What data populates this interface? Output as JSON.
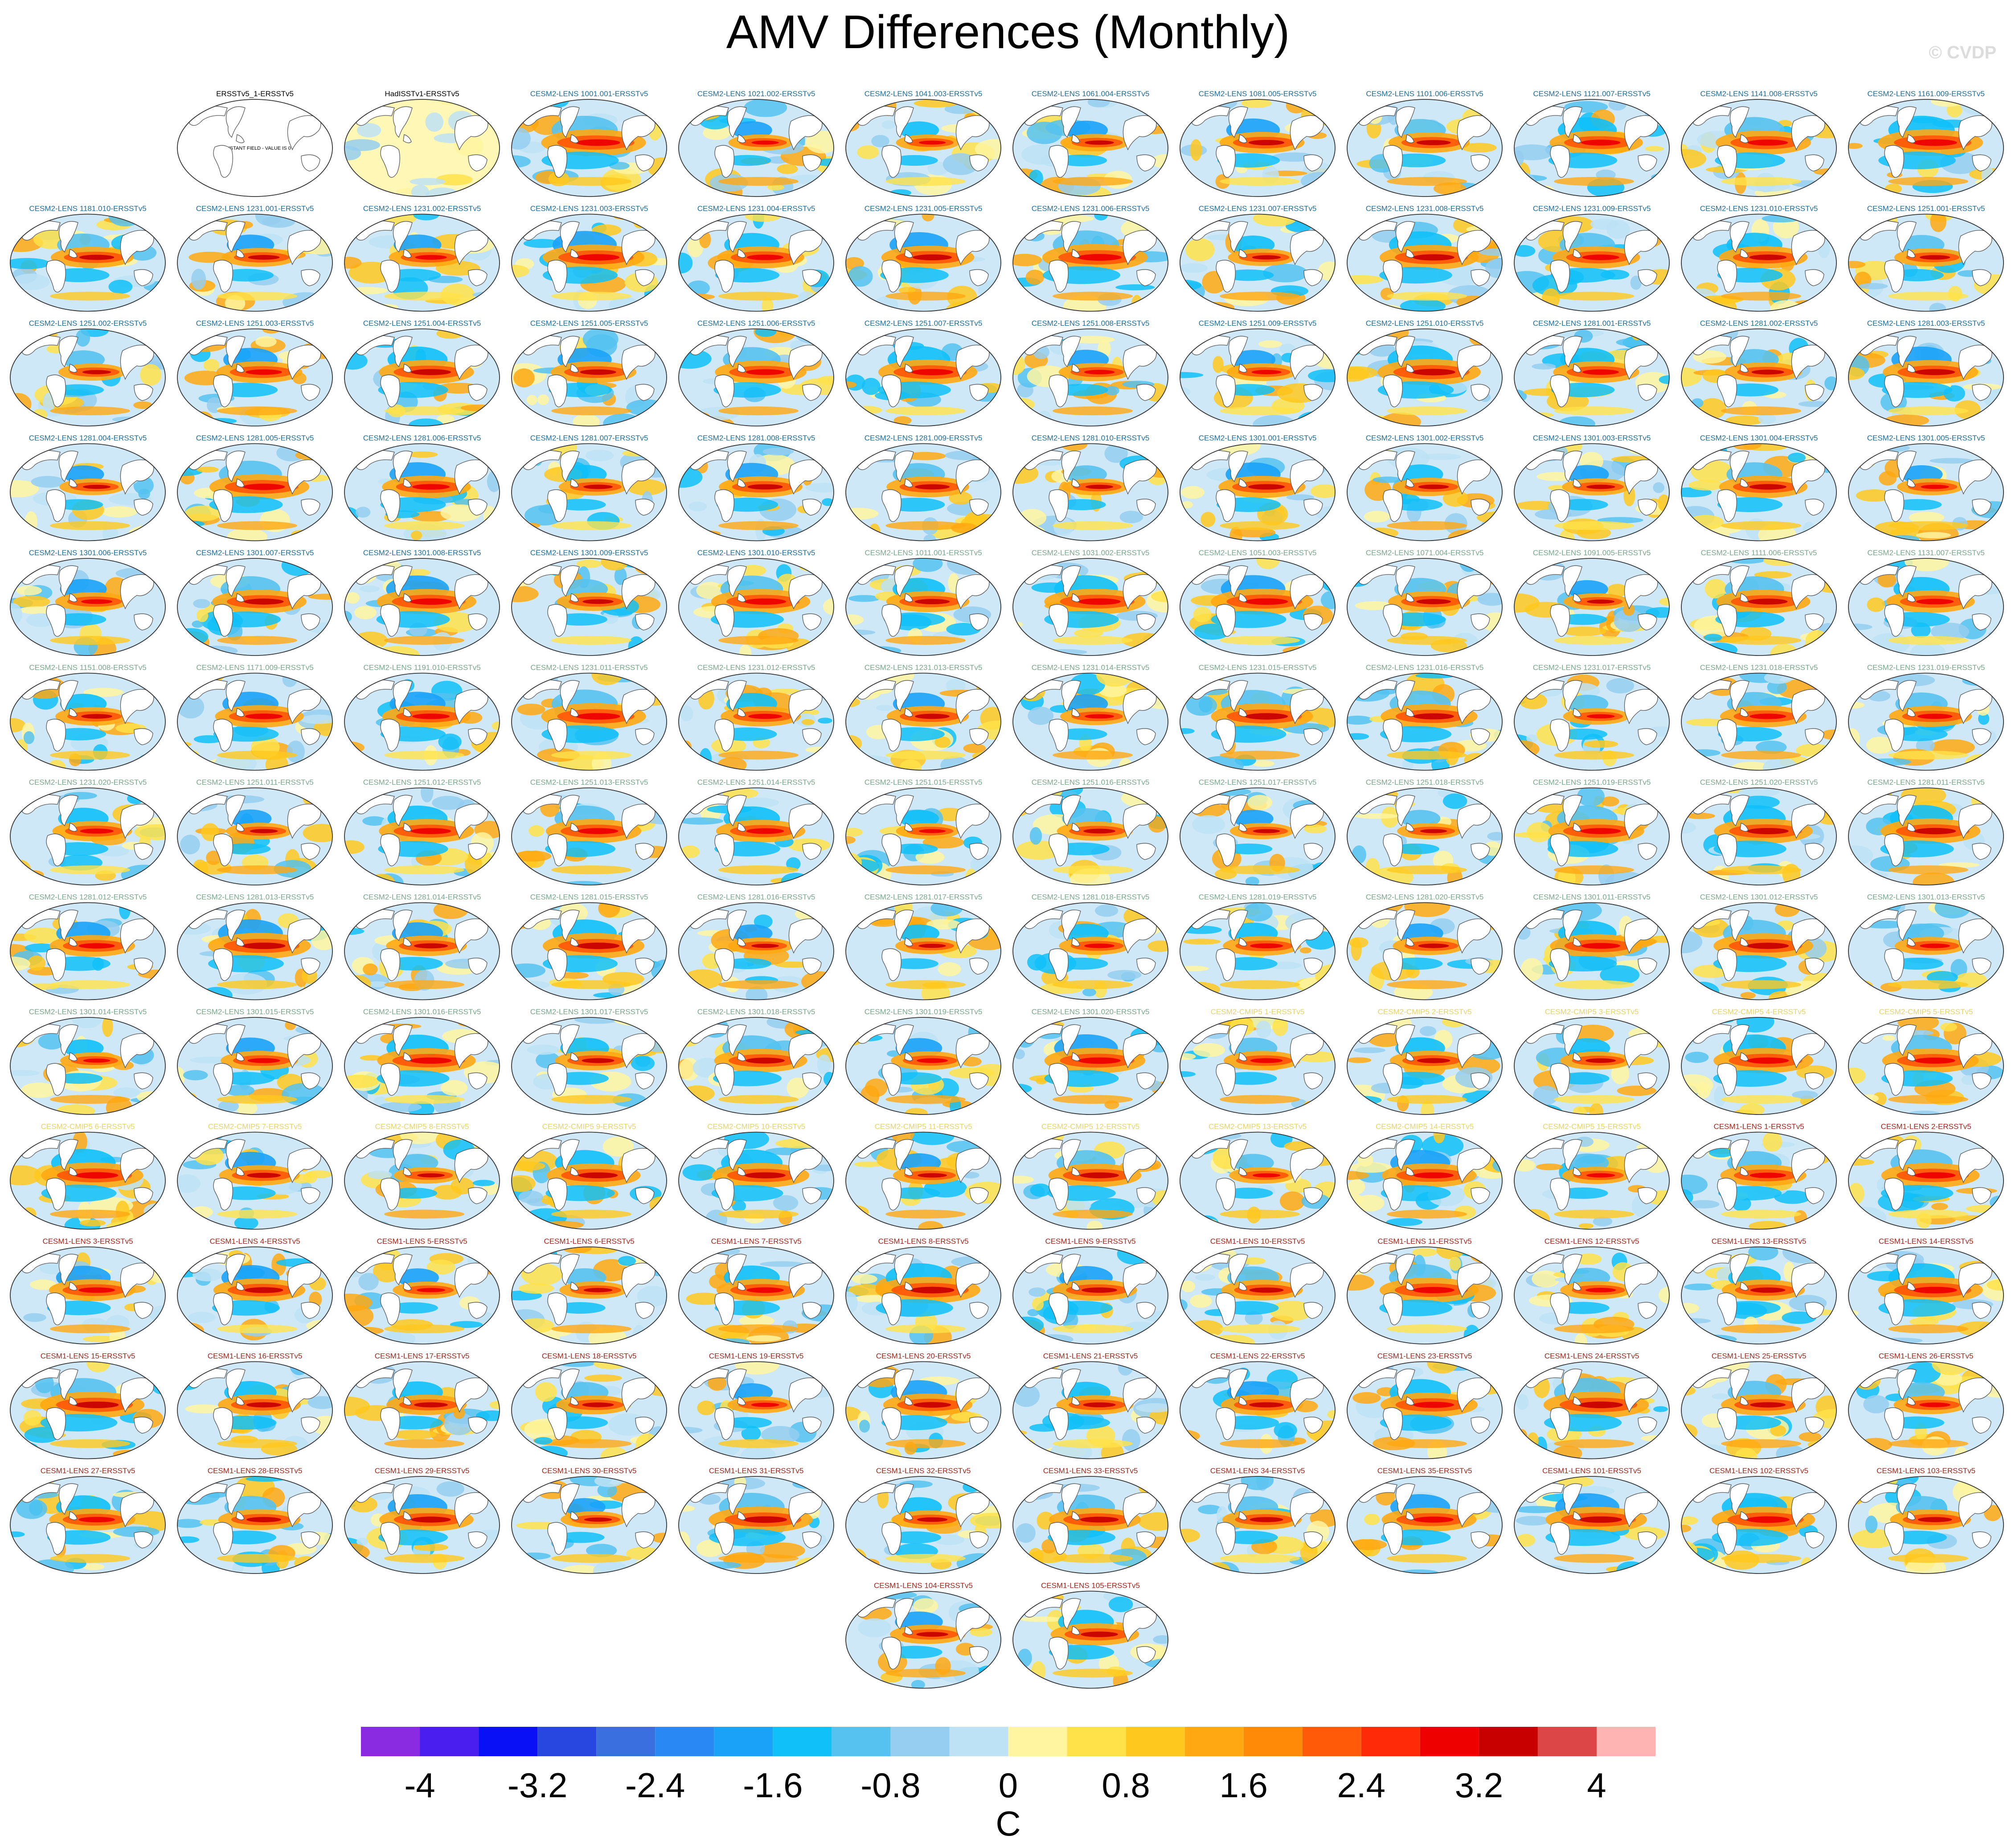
{
  "title": "AMV Differences (Monthly)",
  "watermark": "© CVDP",
  "panel_title_colors": {
    "ERSST": "#000000",
    "CESM2-LENS": "#1f6f9a",
    "CESM2-LENS-alt": "#7aa88f",
    "CESM2-CMIP5": "#e6d36a",
    "CESM1-LENS": "#a0281e"
  },
  "panels": [
    {
      "title": "ERSSTv5_1-ERSSTv5",
      "group": "ERSST",
      "note": "CONSTANT FIELD - VALUE IS 0"
    },
    {
      "title": "HadISSTv1-ERSSTv5",
      "group": "ERSST"
    },
    {
      "title": "CESM2-LENS 1001.001-ERSSTv5",
      "group": "CESM2-LENS"
    },
    {
      "title": "CESM2-LENS 1021.002-ERSSTv5",
      "group": "CESM2-LENS"
    },
    {
      "title": "CESM2-LENS 1041.003-ERSSTv5",
      "group": "CESM2-LENS"
    },
    {
      "title": "CESM2-LENS 1061.004-ERSSTv5",
      "group": "CESM2-LENS"
    },
    {
      "title": "CESM2-LENS 1081.005-ERSSTv5",
      "group": "CESM2-LENS"
    },
    {
      "title": "CESM2-LENS 1101.006-ERSSTv5",
      "group": "CESM2-LENS"
    },
    {
      "title": "CESM2-LENS 1121.007-ERSSTv5",
      "group": "CESM2-LENS"
    },
    {
      "title": "CESM2-LENS 1141.008-ERSSTv5",
      "group": "CESM2-LENS"
    },
    {
      "title": "CESM2-LENS 1161.009-ERSSTv5",
      "group": "CESM2-LENS"
    },
    {
      "title": "CESM2-LENS 1181.010-ERSSTv5",
      "group": "CESM2-LENS"
    },
    {
      "title": "CESM2-LENS 1231.001-ERSSTv5",
      "group": "CESM2-LENS"
    },
    {
      "title": "CESM2-LENS 1231.002-ERSSTv5",
      "group": "CESM2-LENS"
    },
    {
      "title": "CESM2-LENS 1231.003-ERSSTv5",
      "group": "CESM2-LENS"
    },
    {
      "title": "CESM2-LENS 1231.004-ERSSTv5",
      "group": "CESM2-LENS"
    },
    {
      "title": "CESM2-LENS 1231.005-ERSSTv5",
      "group": "CESM2-LENS"
    },
    {
      "title": "CESM2-LENS 1231.006-ERSSTv5",
      "group": "CESM2-LENS"
    },
    {
      "title": "CESM2-LENS 1231.007-ERSSTv5",
      "group": "CESM2-LENS"
    },
    {
      "title": "CESM2-LENS 1231.008-ERSSTv5",
      "group": "CESM2-LENS"
    },
    {
      "title": "CESM2-LENS 1231.009-ERSSTv5",
      "group": "CESM2-LENS"
    },
    {
      "title": "CESM2-LENS 1231.010-ERSSTv5",
      "group": "CESM2-LENS"
    },
    {
      "title": "CESM2-LENS 1251.001-ERSSTv5",
      "group": "CESM2-LENS"
    },
    {
      "title": "CESM2-LENS 1251.002-ERSSTv5",
      "group": "CESM2-LENS"
    },
    {
      "title": "CESM2-LENS 1251.003-ERSSTv5",
      "group": "CESM2-LENS"
    },
    {
      "title": "CESM2-LENS 1251.004-ERSSTv5",
      "group": "CESM2-LENS"
    },
    {
      "title": "CESM2-LENS 1251.005-ERSSTv5",
      "group": "CESM2-LENS"
    },
    {
      "title": "CESM2-LENS 1251.006-ERSSTv5",
      "group": "CESM2-LENS"
    },
    {
      "title": "CESM2-LENS 1251.007-ERSSTv5",
      "group": "CESM2-LENS"
    },
    {
      "title": "CESM2-LENS 1251.008-ERSSTv5",
      "group": "CESM2-LENS"
    },
    {
      "title": "CESM2-LENS 1251.009-ERSSTv5",
      "group": "CESM2-LENS"
    },
    {
      "title": "CESM2-LENS 1251.010-ERSSTv5",
      "group": "CESM2-LENS"
    },
    {
      "title": "CESM2-LENS 1281.001-ERSSTv5",
      "group": "CESM2-LENS"
    },
    {
      "title": "CESM2-LENS 1281.002-ERSSTv5",
      "group": "CESM2-LENS"
    },
    {
      "title": "CESM2-LENS 1281.003-ERSSTv5",
      "group": "CESM2-LENS"
    },
    {
      "title": "CESM2-LENS 1281.004-ERSSTv5",
      "group": "CESM2-LENS"
    },
    {
      "title": "CESM2-LENS 1281.005-ERSSTv5",
      "group": "CESM2-LENS"
    },
    {
      "title": "CESM2-LENS 1281.006-ERSSTv5",
      "group": "CESM2-LENS"
    },
    {
      "title": "CESM2-LENS 1281.007-ERSSTv5",
      "group": "CESM2-LENS"
    },
    {
      "title": "CESM2-LENS 1281.008-ERSSTv5",
      "group": "CESM2-LENS"
    },
    {
      "title": "CESM2-LENS 1281.009-ERSSTv5",
      "group": "CESM2-LENS"
    },
    {
      "title": "CESM2-LENS 1281.010-ERSSTv5",
      "group": "CESM2-LENS"
    },
    {
      "title": "CESM2-LENS 1301.001-ERSSTv5",
      "group": "CESM2-LENS"
    },
    {
      "title": "CESM2-LENS 1301.002-ERSSTv5",
      "group": "CESM2-LENS"
    },
    {
      "title": "CESM2-LENS 1301.003-ERSSTv5",
      "group": "CESM2-LENS"
    },
    {
      "title": "CESM2-LENS 1301.004-ERSSTv5",
      "group": "CESM2-LENS"
    },
    {
      "title": "CESM2-LENS 1301.005-ERSSTv5",
      "group": "CESM2-LENS"
    },
    {
      "title": "CESM2-LENS 1301.006-ERSSTv5",
      "group": "CESM2-LENS"
    },
    {
      "title": "CESM2-LENS 1301.007-ERSSTv5",
      "group": "CESM2-LENS"
    },
    {
      "title": "CESM2-LENS 1301.008-ERSSTv5",
      "group": "CESM2-LENS"
    },
    {
      "title": "CESM2-LENS 1301.009-ERSSTv5",
      "group": "CESM2-LENS"
    },
    {
      "title": "CESM2-LENS 1301.010-ERSSTv5",
      "group": "CESM2-LENS"
    },
    {
      "title": "CESM2-LENS 1011.001-ERSSTv5",
      "group": "CESM2-LENS-alt"
    },
    {
      "title": "CESM2-LENS 1031.002-ERSSTv5",
      "group": "CESM2-LENS-alt"
    },
    {
      "title": "CESM2-LENS 1051.003-ERSSTv5",
      "group": "CESM2-LENS-alt"
    },
    {
      "title": "CESM2-LENS 1071.004-ERSSTv5",
      "group": "CESM2-LENS-alt"
    },
    {
      "title": "CESM2-LENS 1091.005-ERSSTv5",
      "group": "CESM2-LENS-alt"
    },
    {
      "title": "CESM2-LENS 1111.006-ERSSTv5",
      "group": "CESM2-LENS-alt"
    },
    {
      "title": "CESM2-LENS 1131.007-ERSSTv5",
      "group": "CESM2-LENS-alt"
    },
    {
      "title": "CESM2-LENS 1151.008-ERSSTv5",
      "group": "CESM2-LENS-alt"
    },
    {
      "title": "CESM2-LENS 1171.009-ERSSTv5",
      "group": "CESM2-LENS-alt"
    },
    {
      "title": "CESM2-LENS 1191.010-ERSSTv5",
      "group": "CESM2-LENS-alt"
    },
    {
      "title": "CESM2-LENS 1231.011-ERSSTv5",
      "group": "CESM2-LENS-alt"
    },
    {
      "title": "CESM2-LENS 1231.012-ERSSTv5",
      "group": "CESM2-LENS-alt"
    },
    {
      "title": "CESM2-LENS 1231.013-ERSSTv5",
      "group": "CESM2-LENS-alt"
    },
    {
      "title": "CESM2-LENS 1231.014-ERSSTv5",
      "group": "CESM2-LENS-alt"
    },
    {
      "title": "CESM2-LENS 1231.015-ERSSTv5",
      "group": "CESM2-LENS-alt"
    },
    {
      "title": "CESM2-LENS 1231.016-ERSSTv5",
      "group": "CESM2-LENS-alt"
    },
    {
      "title": "CESM2-LENS 1231.017-ERSSTv5",
      "group": "CESM2-LENS-alt"
    },
    {
      "title": "CESM2-LENS 1231.018-ERSSTv5",
      "group": "CESM2-LENS-alt"
    },
    {
      "title": "CESM2-LENS 1231.019-ERSSTv5",
      "group": "CESM2-LENS-alt"
    },
    {
      "title": "CESM2-LENS 1231.020-ERSSTv5",
      "group": "CESM2-LENS-alt"
    },
    {
      "title": "CESM2-LENS 1251.011-ERSSTv5",
      "group": "CESM2-LENS-alt"
    },
    {
      "title": "CESM2-LENS 1251.012-ERSSTv5",
      "group": "CESM2-LENS-alt"
    },
    {
      "title": "CESM2-LENS 1251.013-ERSSTv5",
      "group": "CESM2-LENS-alt"
    },
    {
      "title": "CESM2-LENS 1251.014-ERSSTv5",
      "group": "CESM2-LENS-alt"
    },
    {
      "title": "CESM2-LENS 1251.015-ERSSTv5",
      "group": "CESM2-LENS-alt"
    },
    {
      "title": "CESM2-LENS 1251.016-ERSSTv5",
      "group": "CESM2-LENS-alt"
    },
    {
      "title": "CESM2-LENS 1251.017-ERSSTv5",
      "group": "CESM2-LENS-alt"
    },
    {
      "title": "CESM2-LENS 1251.018-ERSSTv5",
      "group": "CESM2-LENS-alt"
    },
    {
      "title": "CESM2-LENS 1251.019-ERSSTv5",
      "group": "CESM2-LENS-alt"
    },
    {
      "title": "CESM2-LENS 1251.020-ERSSTv5",
      "group": "CESM2-LENS-alt"
    },
    {
      "title": "CESM2-LENS 1281.011-ERSSTv5",
      "group": "CESM2-LENS-alt"
    },
    {
      "title": "CESM2-LENS 1281.012-ERSSTv5",
      "group": "CESM2-LENS-alt"
    },
    {
      "title": "CESM2-LENS 1281.013-ERSSTv5",
      "group": "CESM2-LENS-alt"
    },
    {
      "title": "CESM2-LENS 1281.014-ERSSTv5",
      "group": "CESM2-LENS-alt"
    },
    {
      "title": "CESM2-LENS 1281.015-ERSSTv5",
      "group": "CESM2-LENS-alt"
    },
    {
      "title": "CESM2-LENS 1281.016-ERSSTv5",
      "group": "CESM2-LENS-alt"
    },
    {
      "title": "CESM2-LENS 1281.017-ERSSTv5",
      "group": "CESM2-LENS-alt"
    },
    {
      "title": "CESM2-LENS 1281.018-ERSSTv5",
      "group": "CESM2-LENS-alt"
    },
    {
      "title": "CESM2-LENS 1281.019-ERSSTv5",
      "group": "CESM2-LENS-alt"
    },
    {
      "title": "CESM2-LENS 1281.020-ERSSTv5",
      "group": "CESM2-LENS-alt"
    },
    {
      "title": "CESM2-LENS 1301.011-ERSSTv5",
      "group": "CESM2-LENS-alt"
    },
    {
      "title": "CESM2-LENS 1301.012-ERSSTv5",
      "group": "CESM2-LENS-alt"
    },
    {
      "title": "CESM2-LENS 1301.013-ERSSTv5",
      "group": "CESM2-LENS-alt"
    },
    {
      "title": "CESM2-LENS 1301.014-ERSSTv5",
      "group": "CESM2-LENS-alt"
    },
    {
      "title": "CESM2-LENS 1301.015-ERSSTv5",
      "group": "CESM2-LENS-alt"
    },
    {
      "title": "CESM2-LENS 1301.016-ERSSTv5",
      "group": "CESM2-LENS-alt"
    },
    {
      "title": "CESM2-LENS 1301.017-ERSSTv5",
      "group": "CESM2-LENS-alt"
    },
    {
      "title": "CESM2-LENS 1301.018-ERSSTv5",
      "group": "CESM2-LENS-alt"
    },
    {
      "title": "CESM2-LENS 1301.019-ERSSTv5",
      "group": "CESM2-LENS-alt"
    },
    {
      "title": "CESM2-LENS 1301.020-ERSSTv5",
      "group": "CESM2-LENS-alt"
    },
    {
      "title": "CESM2-CMIP5 1-ERSSTv5",
      "group": "CESM2-CMIP5"
    },
    {
      "title": "CESM2-CMIP5 2-ERSSTv5",
      "group": "CESM2-CMIP5"
    },
    {
      "title": "CESM2-CMIP5 3-ERSSTv5",
      "group": "CESM2-CMIP5"
    },
    {
      "title": "CESM2-CMIP5 4-ERSSTv5",
      "group": "CESM2-CMIP5"
    },
    {
      "title": "CESM2-CMIP5 5-ERSSTv5",
      "group": "CESM2-CMIP5"
    },
    {
      "title": "CESM2-CMIP5 6-ERSSTv5",
      "group": "CESM2-CMIP5"
    },
    {
      "title": "CESM2-CMIP5 7-ERSSTv5",
      "group": "CESM2-CMIP5"
    },
    {
      "title": "CESM2-CMIP5 8-ERSSTv5",
      "group": "CESM2-CMIP5"
    },
    {
      "title": "CESM2-CMIP5 9-ERSSTv5",
      "group": "CESM2-CMIP5"
    },
    {
      "title": "CESM2-CMIP5 10-ERSSTv5",
      "group": "CESM2-CMIP5"
    },
    {
      "title": "CESM2-CMIP5 11-ERSSTv5",
      "group": "CESM2-CMIP5"
    },
    {
      "title": "CESM2-CMIP5 12-ERSSTv5",
      "group": "CESM2-CMIP5"
    },
    {
      "title": "CESM2-CMIP5 13-ERSSTv5",
      "group": "CESM2-CMIP5"
    },
    {
      "title": "CESM2-CMIP5 14-ERSSTv5",
      "group": "CESM2-CMIP5"
    },
    {
      "title": "CESM2-CMIP5 15-ERSSTv5",
      "group": "CESM2-CMIP5"
    },
    {
      "title": "CESM1-LENS 1-ERSSTv5",
      "group": "CESM1-LENS"
    },
    {
      "title": "CESM1-LENS 2-ERSSTv5",
      "group": "CESM1-LENS"
    },
    {
      "title": "CESM1-LENS 3-ERSSTv5",
      "group": "CESM1-LENS"
    },
    {
      "title": "CESM1-LENS 4-ERSSTv5",
      "group": "CESM1-LENS"
    },
    {
      "title": "CESM1-LENS 5-ERSSTv5",
      "group": "CESM1-LENS"
    },
    {
      "title": "CESM1-LENS 6-ERSSTv5",
      "group": "CESM1-LENS"
    },
    {
      "title": "CESM1-LENS 7-ERSSTv5",
      "group": "CESM1-LENS"
    },
    {
      "title": "CESM1-LENS 8-ERSSTv5",
      "group": "CESM1-LENS"
    },
    {
      "title": "CESM1-LENS 9-ERSSTv5",
      "group": "CESM1-LENS"
    },
    {
      "title": "CESM1-LENS 10-ERSSTv5",
      "group": "CESM1-LENS"
    },
    {
      "title": "CESM1-LENS 11-ERSSTv5",
      "group": "CESM1-LENS"
    },
    {
      "title": "CESM1-LENS 12-ERSSTv5",
      "group": "CESM1-LENS"
    },
    {
      "title": "CESM1-LENS 13-ERSSTv5",
      "group": "CESM1-LENS"
    },
    {
      "title": "CESM1-LENS 14-ERSSTv5",
      "group": "CESM1-LENS"
    },
    {
      "title": "CESM1-LENS 15-ERSSTv5",
      "group": "CESM1-LENS"
    },
    {
      "title": "CESM1-LENS 16-ERSSTv5",
      "group": "CESM1-LENS"
    },
    {
      "title": "CESM1-LENS 17-ERSSTv5",
      "group": "CESM1-LENS"
    },
    {
      "title": "CESM1-LENS 18-ERSSTv5",
      "group": "CESM1-LENS"
    },
    {
      "title": "CESM1-LENS 19-ERSSTv5",
      "group": "CESM1-LENS"
    },
    {
      "title": "CESM1-LENS 20-ERSSTv5",
      "group": "CESM1-LENS"
    },
    {
      "title": "CESM1-LENS 21-ERSSTv5",
      "group": "CESM1-LENS"
    },
    {
      "title": "CESM1-LENS 22-ERSSTv5",
      "group": "CESM1-LENS"
    },
    {
      "title": "CESM1-LENS 23-ERSSTv5",
      "group": "CESM1-LENS"
    },
    {
      "title": "CESM1-LENS 24-ERSSTv5",
      "group": "CESM1-LENS"
    },
    {
      "title": "CESM1-LENS 25-ERSSTv5",
      "group": "CESM1-LENS"
    },
    {
      "title": "CESM1-LENS 26-ERSSTv5",
      "group": "CESM1-LENS"
    },
    {
      "title": "CESM1-LENS 27-ERSSTv5",
      "group": "CESM1-LENS"
    },
    {
      "title": "CESM1-LENS 28-ERSSTv5",
      "group": "CESM1-LENS"
    },
    {
      "title": "CESM1-LENS 29-ERSSTv5",
      "group": "CESM1-LENS"
    },
    {
      "title": "CESM1-LENS 30-ERSSTv5",
      "group": "CESM1-LENS"
    },
    {
      "title": "CESM1-LENS 31-ERSSTv5",
      "group": "CESM1-LENS"
    },
    {
      "title": "CESM1-LENS 32-ERSSTv5",
      "group": "CESM1-LENS"
    },
    {
      "title": "CESM1-LENS 33-ERSSTv5",
      "group": "CESM1-LENS"
    },
    {
      "title": "CESM1-LENS 34-ERSSTv5",
      "group": "CESM1-LENS"
    },
    {
      "title": "CESM1-LENS 35-ERSSTv5",
      "group": "CESM1-LENS"
    },
    {
      "title": "CESM1-LENS 101-ERSSTv5",
      "group": "CESM1-LENS"
    },
    {
      "title": "CESM1-LENS 102-ERSSTv5",
      "group": "CESM1-LENS"
    },
    {
      "title": "CESM1-LENS 103-ERSSTv5",
      "group": "CESM1-LENS"
    },
    {
      "title": "CESM1-LENS 104-ERSSTv5",
      "group": "CESM1-LENS"
    },
    {
      "title": "CESM1-LENS 105-ERSSTv5",
      "group": "CESM1-LENS"
    }
  ],
  "chart_data": {
    "type": "heatmap",
    "title": "AMV Differences (Monthly)",
    "colorbar": {
      "unit": "C",
      "levels": [
        -4.4,
        -4,
        -3.6,
        -3.2,
        -2.8,
        -2.4,
        -2,
        -1.6,
        -1.2,
        -0.8,
        -0.4,
        0,
        0.4,
        0.8,
        1.2,
        1.6,
        2,
        2.4,
        2.8,
        3.2,
        3.6,
        4,
        4.4
      ],
      "tick_labels": [
        "-4",
        "-3.2",
        "-2.4",
        "-1.6",
        "-0.8",
        "0",
        "0.8",
        "1.6",
        "2.4",
        "3.2",
        "4"
      ],
      "tick_values": [
        -4,
        -3.2,
        -2.4,
        -1.6,
        -0.8,
        0,
        0.8,
        1.6,
        2.4,
        3.2,
        4
      ],
      "colors": [
        "#8a2be2",
        "#4b1ef0",
        "#0a10f5",
        "#2846e0",
        "#3a6fe0",
        "#2a88f5",
        "#1aa2f8",
        "#10c0f8",
        "#55c2f0",
        "#95cef0",
        "#bde2f5",
        "#fff5a0",
        "#ffe24a",
        "#ffc81e",
        "#ffa812",
        "#ff8a08",
        "#ff5a08",
        "#ff2a08",
        "#ee0000",
        "#c80000",
        "#dc4646",
        "#ffb4b4"
      ]
    }
  }
}
